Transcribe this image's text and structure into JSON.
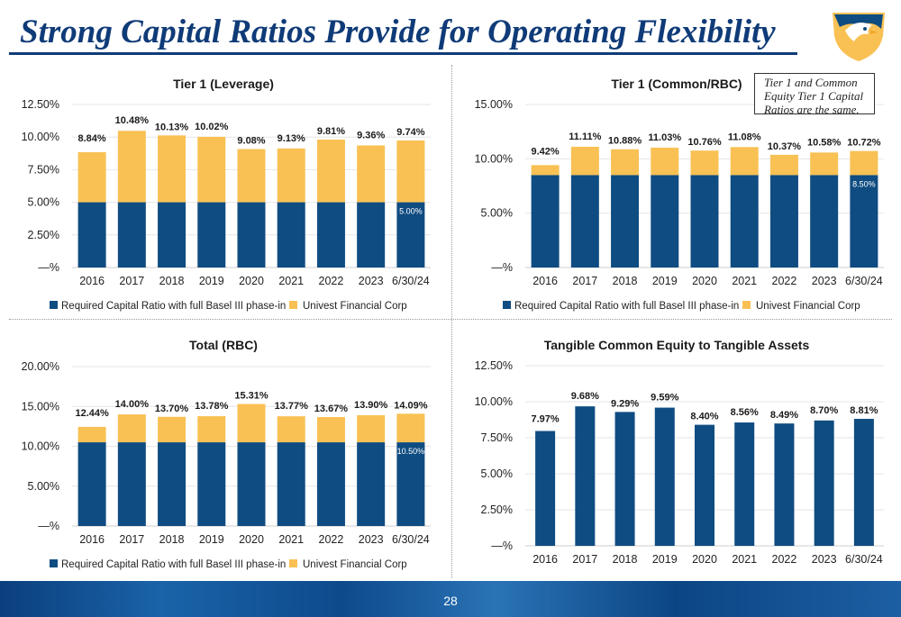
{
  "header": {
    "title": "Strong Capital Ratios Provide for Operating Flexibility",
    "page_number": "28"
  },
  "note": "Tier 1 and Common Equity Tier 1 Capital Ratios are the same.",
  "colors": {
    "required": "#0f4c81",
    "univest": "#f9c154",
    "title": "#0f3b78"
  },
  "chart_data": [
    {
      "type": "bar",
      "title": "Tier 1 (Leverage)",
      "categories": [
        "2016",
        "2017",
        "2018",
        "2019",
        "2020",
        "2021",
        "2022",
        "2023",
        "6/30/24"
      ],
      "yticks": [
        "—%",
        "2.50%",
        "5.00%",
        "7.50%",
        "10.00%",
        "12.50%"
      ],
      "ylim": [
        0,
        12.5
      ],
      "series": [
        {
          "name": "Required Capital Ratio with full Basel III phase-in",
          "values": [
            5,
            5,
            5,
            5,
            5,
            5,
            5,
            5,
            5
          ]
        },
        {
          "name": "Univest Financial Corp",
          "values": [
            8.84,
            10.48,
            10.13,
            10.02,
            9.08,
            9.13,
            9.81,
            9.36,
            9.74
          ]
        }
      ],
      "data_labels": [
        "8.84%",
        "10.48%",
        "10.13%",
        "10.02%",
        "9.08%",
        "9.13%",
        "9.81%",
        "9.36%",
        "9.74%"
      ],
      "required_label": "5.00%"
    },
    {
      "type": "bar",
      "title": "Tier 1 (Common/RBC)",
      "categories": [
        "2016",
        "2017",
        "2018",
        "2019",
        "2020",
        "2021",
        "2022",
        "2023",
        "6/30/24"
      ],
      "yticks": [
        "—%",
        "5.00%",
        "10.00%",
        "15.00%"
      ],
      "ylim": [
        0,
        15
      ],
      "series": [
        {
          "name": "Required Capital Ratio with full Basel III phase-in",
          "values": [
            8.5,
            8.5,
            8.5,
            8.5,
            8.5,
            8.5,
            8.5,
            8.5,
            8.5
          ]
        },
        {
          "name": "Univest Financial Corp",
          "values": [
            9.42,
            11.11,
            10.88,
            11.03,
            10.76,
            11.08,
            10.37,
            10.58,
            10.72
          ]
        }
      ],
      "data_labels": [
        "9.42%",
        "11.11%",
        "10.88%",
        "11.03%",
        "10.76%",
        "11.08%",
        "10.37%",
        "10.58%",
        "10.72%"
      ],
      "required_label": "8.50%"
    },
    {
      "type": "bar",
      "title": "Total (RBC)",
      "categories": [
        "2016",
        "2017",
        "2018",
        "2019",
        "2020",
        "2021",
        "2022",
        "2023",
        "6/30/24"
      ],
      "yticks": [
        "—%",
        "5.00%",
        "10.00%",
        "15.00%",
        "20.00%"
      ],
      "ylim": [
        0,
        20
      ],
      "series": [
        {
          "name": "Required Capital Ratio with full Basel III phase-in",
          "values": [
            10.5,
            10.5,
            10.5,
            10.5,
            10.5,
            10.5,
            10.5,
            10.5,
            10.5
          ]
        },
        {
          "name": "Univest Financial Corp",
          "values": [
            12.44,
            14.0,
            13.7,
            13.78,
            15.31,
            13.77,
            13.67,
            13.9,
            14.09
          ]
        }
      ],
      "data_labels": [
        "12.44%",
        "14.00%",
        "13.70%",
        "13.78%",
        "15.31%",
        "13.77%",
        "13.67%",
        "13.90%",
        "14.09%"
      ],
      "required_label": "10.50%"
    },
    {
      "type": "bar",
      "title": "Tangible Common Equity to Tangible Assets",
      "categories": [
        "2016",
        "2017",
        "2018",
        "2019",
        "2020",
        "2021",
        "2022",
        "2023",
        "6/30/24"
      ],
      "yticks": [
        "—%",
        "2.50%",
        "5.00%",
        "7.50%",
        "10.00%",
        "12.50%"
      ],
      "ylim": [
        0,
        12.5
      ],
      "series": [
        {
          "values": [
            7.97,
            9.68,
            9.29,
            9.59,
            8.4,
            8.56,
            8.49,
            8.7,
            8.81
          ]
        }
      ],
      "data_labels": [
        "7.97%",
        "9.68%",
        "9.29%",
        "9.59%",
        "8.40%",
        "8.56%",
        "8.49%",
        "8.70%",
        "8.81%"
      ]
    }
  ]
}
